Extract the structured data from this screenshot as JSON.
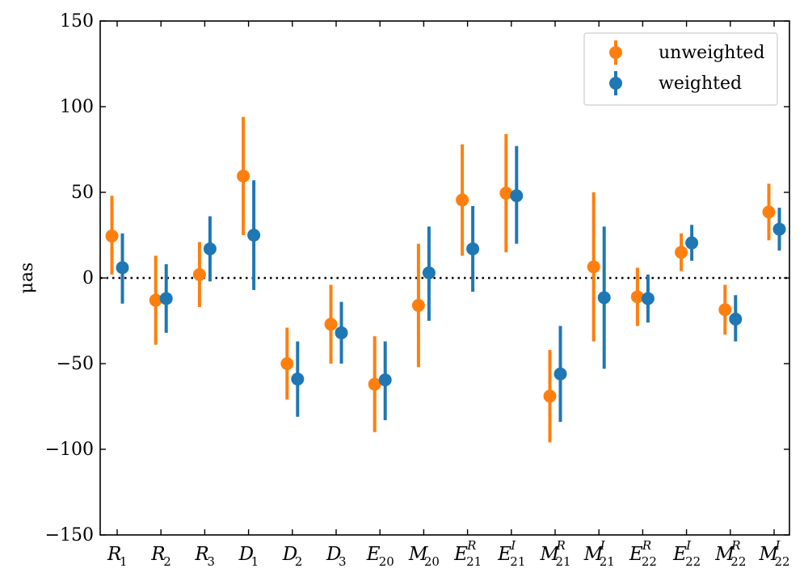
{
  "chart_data": {
    "type": "errorbar",
    "title": "",
    "xlabel": "",
    "ylabel": "μas",
    "ylim": [
      -150,
      150
    ],
    "yticks": [
      150,
      100,
      50,
      0,
      -50,
      -100,
      -150
    ],
    "ytick_labels": [
      "150",
      "100",
      "50",
      "0",
      "−50",
      "−100",
      "−150"
    ],
    "reference_line": {
      "y": 0,
      "style": "dotted"
    },
    "grid": false,
    "legend_position": "top-right",
    "categories": [
      {
        "base": "R",
        "sub": "1",
        "sup": ""
      },
      {
        "base": "R",
        "sub": "2",
        "sup": ""
      },
      {
        "base": "R",
        "sub": "3",
        "sup": ""
      },
      {
        "base": "D",
        "sub": "1",
        "sup": ""
      },
      {
        "base": "D",
        "sub": "2",
        "sup": ""
      },
      {
        "base": "D",
        "sub": "3",
        "sup": ""
      },
      {
        "base": "E",
        "sub": "20",
        "sup": ""
      },
      {
        "base": "M",
        "sub": "20",
        "sup": ""
      },
      {
        "base": "E",
        "sub": "21",
        "sup": "R"
      },
      {
        "base": "E",
        "sub": "21",
        "sup": "I"
      },
      {
        "base": "M",
        "sub": "21",
        "sup": "R"
      },
      {
        "base": "M",
        "sub": "21",
        "sup": "I"
      },
      {
        "base": "E",
        "sub": "22",
        "sup": "R"
      },
      {
        "base": "E",
        "sub": "22",
        "sup": "I"
      },
      {
        "base": "M",
        "sub": "22",
        "sup": "R"
      },
      {
        "base": "M",
        "sub": "22",
        "sup": "I"
      }
    ],
    "series": [
      {
        "name": "unweighted",
        "color": "#ff7f0e",
        "values": [
          24.5,
          -13,
          2,
          59.5,
          -50,
          -27,
          -62,
          -16,
          45.5,
          49.5,
          -69,
          6.5,
          -11,
          15,
          -18.5,
          38.5
        ],
        "err_low": [
          2,
          -39,
          -17,
          25,
          -71,
          -50,
          -90,
          -52,
          13,
          15,
          -96,
          -37,
          -28,
          4,
          -33,
          22
        ],
        "err_high": [
          48,
          13,
          21,
          94,
          -29,
          -4,
          -34,
          20,
          78,
          84,
          -42,
          50,
          6,
          26,
          -4,
          55
        ]
      },
      {
        "name": "weighted",
        "color": "#1f77b4",
        "values": [
          6,
          -12,
          17,
          25,
          -59,
          -32,
          -59.5,
          3,
          17,
          48,
          -56,
          -11.5,
          -12,
          20.5,
          -24,
          28.5
        ],
        "err_low": [
          -15,
          -32,
          -2,
          -7,
          -81,
          -50,
          -83,
          -25,
          -8,
          20,
          -84,
          -53,
          -26,
          10,
          -37,
          16
        ],
        "err_high": [
          26,
          8,
          36,
          57,
          -37,
          -14,
          -37,
          30,
          42,
          77,
          -28,
          30,
          2,
          31,
          -10,
          41
        ]
      }
    ]
  }
}
